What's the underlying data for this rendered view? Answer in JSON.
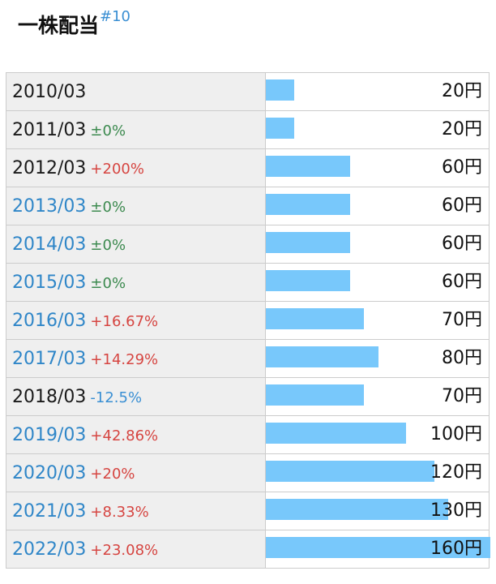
{
  "header": {
    "title": "一株配当",
    "link": "#10"
  },
  "chart_data": {
    "type": "bar",
    "orientation": "horizontal",
    "title": "一株配当",
    "unit": "円",
    "categories": [
      "2010/03",
      "2011/03",
      "2012/03",
      "2013/03",
      "2014/03",
      "2015/03",
      "2016/03",
      "2017/03",
      "2018/03",
      "2019/03",
      "2020/03",
      "2021/03",
      "2022/03"
    ],
    "values": [
      20,
      20,
      60,
      60,
      60,
      60,
      70,
      80,
      70,
      100,
      120,
      130,
      160
    ],
    "value_labels": [
      "20円",
      "20円",
      "60円",
      "60円",
      "60円",
      "60円",
      "70円",
      "80円",
      "70円",
      "100円",
      "120円",
      "130円",
      "160円"
    ],
    "changes": [
      "",
      "±0%",
      "+200%",
      "±0%",
      "±0%",
      "±0%",
      "+16.67%",
      "+14.29%",
      "-12.5%",
      "+42.86%",
      "+20%",
      "+8.33%",
      "+23.08%"
    ],
    "change_direction": [
      "none",
      "flat",
      "up",
      "flat",
      "flat",
      "flat",
      "up",
      "up",
      "down",
      "up",
      "up",
      "up",
      "up"
    ],
    "date_is_link": [
      false,
      false,
      false,
      true,
      true,
      true,
      true,
      true,
      false,
      true,
      true,
      true,
      true
    ],
    "xlim": [
      0,
      160
    ],
    "colors": {
      "bar": "#78c8fb",
      "up": "#d64541",
      "flat": "#3c8a4f",
      "down": "#3a8fd3",
      "link": "#2f86c8"
    }
  }
}
